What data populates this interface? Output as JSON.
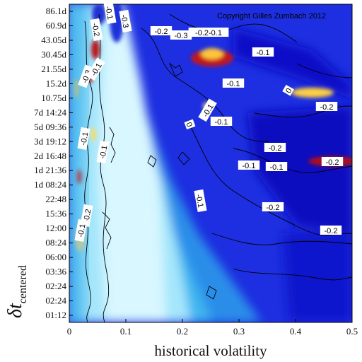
{
  "chart_data": {
    "type": "heatmap",
    "copyright": "Copyright Gilles Zumbach 2012",
    "xlabel": "historical volatility",
    "ylabel_main": "δt",
    "ylabel_sub": "centered",
    "xlim": [
      0,
      0.5
    ],
    "x_ticks": [
      "0",
      "0.1",
      "0.2",
      "0.3",
      "0.4",
      "0.5"
    ],
    "y_ticks": [
      "01:12",
      "02:24",
      "02:24",
      "03:36",
      "06:00",
      "08:24",
      "12:00",
      "15:36",
      "22:48",
      "1d 08:24",
      "1d 21:36",
      "2d 16:48",
      "3d 19:12",
      "5d 09:36",
      "7d 14:24",
      "10.75d",
      "15.2d",
      "21.55d",
      "30.45d",
      "43.05d",
      "60.9d",
      "86.1d"
    ],
    "colormap": {
      "negative": "#0a10d8",
      "mid_negative": "#2f8fe8",
      "near_zero": "#c8f4ff",
      "positive": "#ffd34a",
      "strong_positive": "#b8101a"
    },
    "contour_labels": [
      "-0.2",
      "-0.1",
      "-0.3",
      "-0.2",
      "-0.3",
      "-0.2-0.1",
      "-0.1",
      "-0.3",
      "-0.1",
      "-0.1",
      "-0.2",
      "-0.1",
      "-0.1",
      "-0.1",
      "-0.1",
      "0",
      "-0.2",
      "0",
      "-0.1",
      "-0.2",
      "-0.1",
      "-0.1",
      "-0.2",
      "-0.1",
      "-0.2",
      "-0.2"
    ]
  }
}
